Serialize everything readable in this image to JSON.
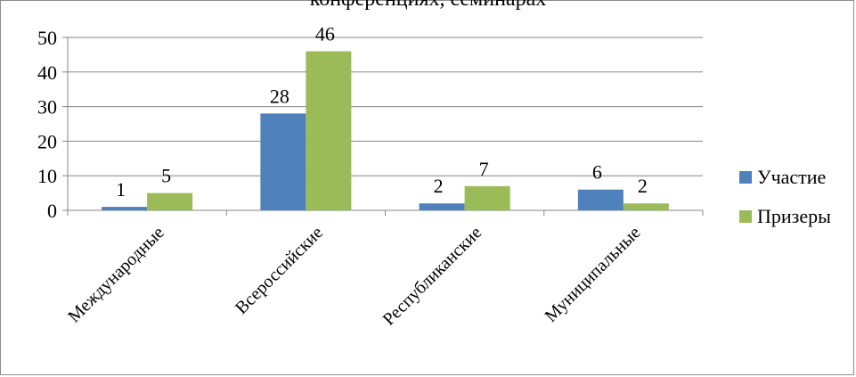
{
  "chart_data": {
    "type": "bar",
    "title": "конференциях, семинарах",
    "categories": [
      "Международные",
      "Всероссийские",
      "Республиканские",
      "Муниципальные"
    ],
    "series": [
      {
        "name": "Участие",
        "values": [
          1,
          28,
          2,
          6
        ],
        "color": "#4f81bd"
      },
      {
        "name": "Призеры",
        "values": [
          5,
          46,
          7,
          2
        ],
        "color": "#9bbb59"
      }
    ],
    "ylim": [
      0,
      50
    ],
    "yticks": [
      0,
      10,
      20,
      30,
      40,
      50
    ],
    "grid": true,
    "legend_position": "right"
  }
}
